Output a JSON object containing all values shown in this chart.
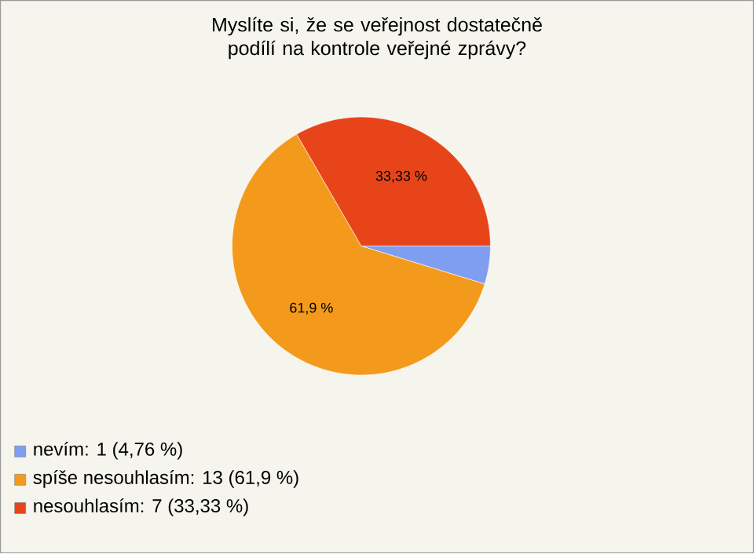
{
  "chart_data": {
    "type": "pie",
    "title": "Myslíte si, že se veřejnost dostatečně podílí na kontrole veřejné zprávy?",
    "categories": [
      "nevím: 1 (4,76 %)",
      "spíše nesouhlasím: 13 (61,9 %)",
      "nesouhlasím: 7 (33,33 %)"
    ],
    "values": [
      4.76,
      61.9,
      33.33
    ],
    "colors": [
      "#7f9ef0",
      "#f39a1c",
      "#e8441a"
    ],
    "value_labels": [
      null,
      "61,9 %",
      "33,33 %"
    ],
    "legend": "bottom left"
  }
}
